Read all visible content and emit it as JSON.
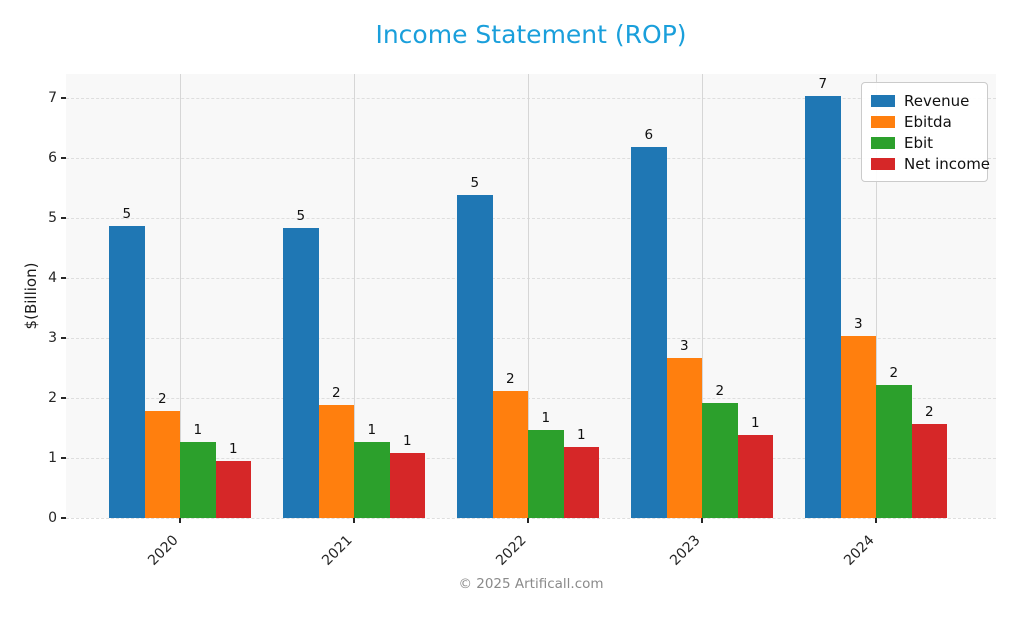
{
  "page": {
    "footer": "© 2025 Artificall.com"
  },
  "chart_data": {
    "type": "bar",
    "title": "Income Statement (ROP)",
    "title_color": "#1a9fdb",
    "xlabel": "",
    "ylabel": "$(Billion)",
    "categories": [
      "2020",
      "2021",
      "2022",
      "2023",
      "2024"
    ],
    "series": [
      {
        "name": "Revenue",
        "color": "#1f77b4",
        "values": [
          4.86,
          4.83,
          5.38,
          6.19,
          7.03
        ],
        "labels": [
          "5",
          "5",
          "5",
          "6",
          "7"
        ]
      },
      {
        "name": "Ebitda",
        "color": "#ff7f0e",
        "values": [
          1.79,
          1.89,
          2.12,
          2.67,
          3.04
        ],
        "labels": [
          "2",
          "2",
          "2",
          "3",
          "3"
        ]
      },
      {
        "name": "Ebit",
        "color": "#2ca02c",
        "values": [
          1.27,
          1.27,
          1.47,
          1.91,
          2.22
        ],
        "labels": [
          "1",
          "1",
          "1",
          "2",
          "2"
        ]
      },
      {
        "name": "Net income",
        "color": "#d62728",
        "values": [
          0.95,
          1.08,
          1.19,
          1.38,
          1.56
        ],
        "labels": [
          "1",
          "1",
          "1",
          "1",
          "2"
        ]
      }
    ],
    "y_ticks": [
      0,
      1,
      2,
      3,
      4,
      5,
      6,
      7
    ],
    "ylim": [
      0,
      7.4
    ],
    "grid": true,
    "plot_background": "#f8f8f8",
    "legend_position": "upper right"
  }
}
